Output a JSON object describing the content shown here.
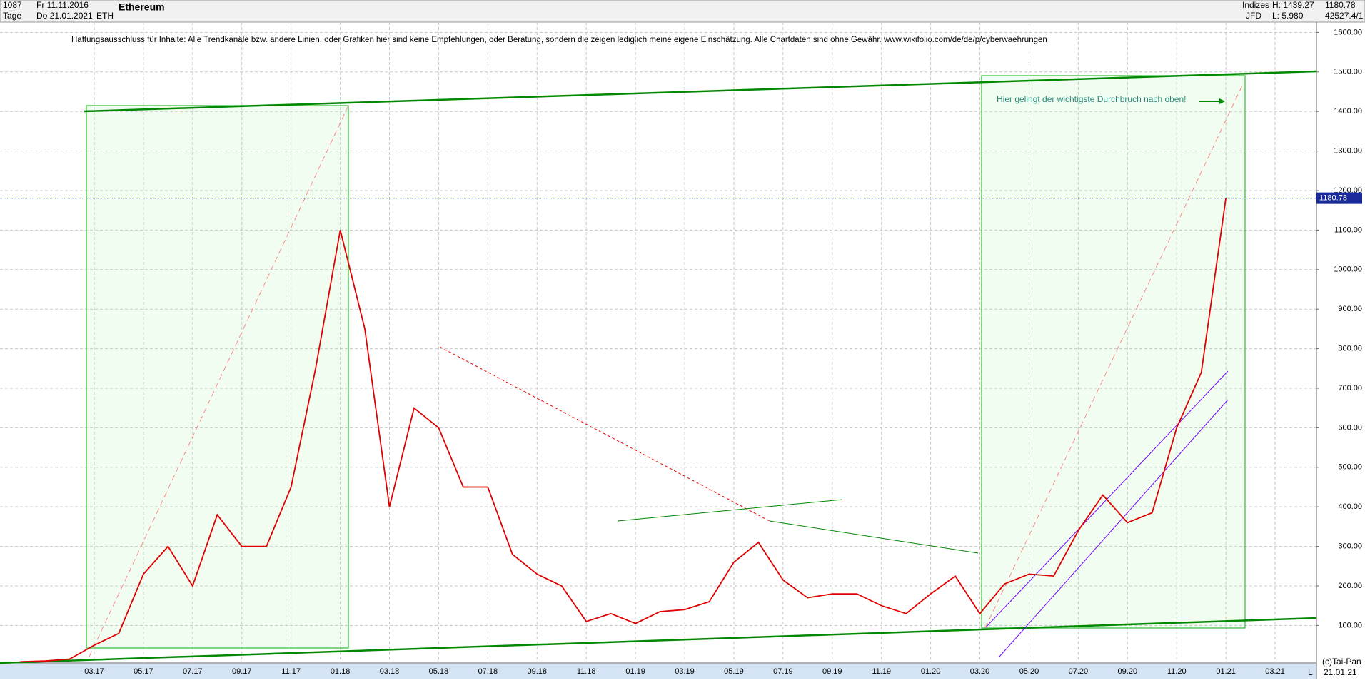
{
  "header": {
    "bars": "1087",
    "from": "Fr 11.11.2016",
    "period": "Tage",
    "to": "Do 21.01.2021",
    "symbol": "ETH",
    "name": "Ethereum",
    "group": "Indizes",
    "broker": "JFD",
    "high": "H: 1439.27",
    "low": "L: 5.980",
    "last": "1180.78",
    "extra": "42527.4/1"
  },
  "footer": {
    "copyright": "(c)Tai-Pan",
    "date": "21.01.21",
    "scale": "L"
  },
  "chart_data": {
    "type": "line",
    "title": "Ethereum",
    "subtitle": "Haftungsausschluss für Inhalte: Alle Trendkanäle bzw. andere Linien, oder Grafiken hier sind keine Empfehlungen, oder Beratung, sondern die zeigen lediglich meine eigene Einschätzung. Alle Chartdaten sind ohne Gewähr.  www.wikifolio.com/de/de/p/cyberwaehrungen",
    "annotation": "Hier gelingt der wichtigste Durchbruch nach oben!",
    "categories": [
      null,
      null,
      null,
      "03.17",
      null,
      "05.17",
      null,
      "07.17",
      null,
      "09.17",
      null,
      "11.17",
      null,
      "01.18",
      null,
      "03.18",
      null,
      "05.18",
      null,
      "07.18",
      null,
      "09.18",
      null,
      "11.18",
      null,
      "01.19",
      null,
      "03.19",
      null,
      "05.19",
      null,
      "07.19",
      null,
      "09.19",
      null,
      "11.19",
      null,
      "01.20",
      null,
      "03.20",
      null,
      "05.20",
      null,
      "07.20",
      null,
      "09.20",
      null,
      "11.20",
      null,
      "01.21",
      null,
      "03.21"
    ],
    "series": [
      {
        "name": "ETH",
        "color": "#e00000",
        "values": [
          8,
          10,
          15,
          50,
          80,
          230,
          300,
          200,
          380,
          300,
          300,
          450,
          750,
          1100,
          850,
          400,
          650,
          600,
          450,
          450,
          280,
          230,
          200,
          110,
          130,
          105,
          135,
          140,
          160,
          260,
          310,
          215,
          170,
          180,
          180,
          150,
          130,
          180,
          225,
          130,
          205,
          230,
          225,
          340,
          430,
          360,
          385,
          600,
          740,
          1180.78,
          null,
          null
        ]
      }
    ],
    "last_price": {
      "value": 1180.78,
      "label": "1180.78"
    },
    "ylim": [
      5,
      1626
    ],
    "yticks": [
      {
        "value": 100,
        "label": "100.00"
      },
      {
        "value": 200,
        "label": "200.00"
      },
      {
        "value": 300,
        "label": "300.00"
      },
      {
        "value": 400,
        "label": "400.00"
      },
      {
        "value": 500,
        "label": "500.00"
      },
      {
        "value": 600,
        "label": "600.00"
      },
      {
        "value": 700,
        "label": "700.00"
      },
      {
        "value": 800,
        "label": "800.00"
      },
      {
        "value": 900,
        "label": "900.00"
      },
      {
        "value": 1000,
        "label": "1000.00"
      },
      {
        "value": 1100,
        "label": "1100.00"
      },
      {
        "value": 1200,
        "label": "1200.00"
      },
      {
        "value": 1300,
        "label": "1300.00"
      },
      {
        "value": 1400,
        "label": "1400.00"
      },
      {
        "value": 1500,
        "label": "1500.00"
      },
      {
        "value": 1600,
        "label": "1600.00"
      }
    ],
    "grid": true
  }
}
